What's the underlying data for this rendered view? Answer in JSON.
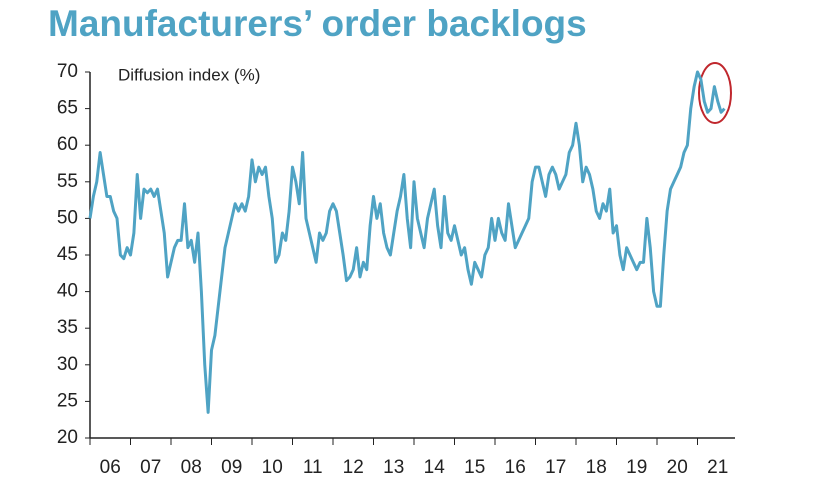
{
  "chart_data": {
    "type": "line",
    "title": "Manufacturers’ order backlogs",
    "ylabel": "Diffusion index (%)",
    "categories": [
      null,
      null,
      null,
      null,
      null,
      null,
      "06",
      null,
      null,
      null,
      null,
      null,
      null,
      null,
      null,
      null,
      null,
      null,
      "07",
      null,
      null,
      null,
      null,
      null,
      null,
      null,
      null,
      null,
      null,
      null,
      "08",
      null,
      null,
      null,
      null,
      null,
      null,
      null,
      null,
      null,
      null,
      null,
      "09",
      null,
      null,
      null,
      null,
      null,
      null,
      null,
      null,
      null,
      null,
      null,
      "10",
      null,
      null,
      null,
      null,
      null,
      null,
      null,
      null,
      null,
      null,
      null,
      "11",
      null,
      null,
      null,
      null,
      null,
      null,
      null,
      null,
      null,
      null,
      null,
      "12",
      null,
      null,
      null,
      null,
      null,
      null,
      null,
      null,
      null,
      null,
      null,
      "13",
      null,
      null,
      null,
      null,
      null,
      null,
      null,
      null,
      null,
      null,
      null,
      "14",
      null,
      null,
      null,
      null,
      null,
      null,
      null,
      null,
      null,
      null,
      null,
      "15",
      null,
      null,
      null,
      null,
      null,
      null,
      null,
      null,
      null,
      null,
      null,
      "16",
      null,
      null,
      null,
      null,
      null,
      null,
      null,
      null,
      null,
      null,
      null,
      "17",
      null,
      null,
      null,
      null,
      null,
      null,
      null,
      null,
      null,
      null,
      null,
      "18",
      null,
      null,
      null,
      null,
      null,
      null,
      null,
      null,
      null,
      null,
      null,
      "19",
      null,
      null,
      null,
      null,
      null,
      null,
      null,
      null,
      null,
      null,
      null,
      "20",
      null,
      null,
      null,
      null,
      null,
      null,
      null,
      null,
      null,
      null,
      null,
      "21",
      null,
      null
    ],
    "series": [
      {
        "name": "Diffusion index",
        "color": "#4fa3c4",
        "values": [
          50,
          53,
          55,
          59,
          56,
          53,
          53,
          51,
          50,
          45,
          44.5,
          46,
          45,
          48,
          56,
          50,
          54,
          53.5,
          54,
          53,
          54,
          51,
          48,
          42,
          44,
          46,
          47,
          47,
          52,
          46,
          47,
          44,
          48,
          40,
          30,
          23.5,
          32,
          34,
          38,
          42,
          46,
          48,
          50,
          52,
          51,
          52,
          51,
          53,
          58,
          55,
          57,
          56,
          57,
          53,
          50,
          44,
          45,
          48,
          47,
          51,
          57,
          55,
          52,
          59,
          50,
          48,
          46,
          44,
          48,
          47,
          48,
          51,
          52,
          51,
          48,
          45,
          41.5,
          42,
          43,
          46,
          42,
          44,
          43,
          49,
          53,
          50,
          52,
          48,
          46,
          45,
          48,
          51,
          53,
          56,
          50,
          46,
          55,
          50,
          48,
          46,
          50,
          52,
          54,
          49,
          46,
          53,
          48,
          47,
          49,
          47,
          45,
          46,
          43,
          41,
          44,
          43,
          42,
          45,
          46,
          50,
          47,
          50,
          48,
          47,
          52,
          49,
          46,
          47,
          48,
          49,
          50,
          55,
          57,
          57,
          55,
          53,
          56,
          57,
          56,
          54,
          55,
          56,
          59,
          60,
          63,
          60,
          55,
          57,
          56,
          54,
          51,
          50,
          52,
          51,
          54,
          48,
          49,
          45,
          43,
          46,
          45,
          44,
          43,
          44,
          44,
          50,
          46,
          40,
          38,
          38,
          45,
          51,
          54,
          55,
          56,
          57,
          59,
          60,
          65,
          68,
          70,
          69,
          66,
          64.5,
          65,
          68,
          66,
          64.5,
          65
        ]
      }
    ],
    "ylim": [
      20,
      70
    ],
    "yticks": [
      20,
      25,
      30,
      35,
      40,
      45,
      50,
      55,
      60,
      65,
      70
    ]
  }
}
